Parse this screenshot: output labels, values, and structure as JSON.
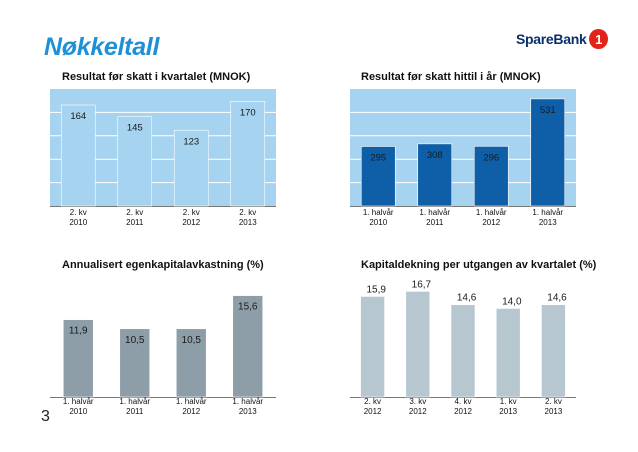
{
  "page": {
    "title": "Nøkkeltall",
    "page_number": "3",
    "logo_text": "SpareBank",
    "logo_mark": "1"
  },
  "chart_data": [
    {
      "type": "bar",
      "title": "Resultat før skatt i kvartalet (MNOK)",
      "categories": [
        [
          "2. kv",
          "2010"
        ],
        [
          "2. kv",
          "2011"
        ],
        [
          "2. kv",
          "2012"
        ],
        [
          "2. kv",
          "2013"
        ]
      ],
      "values": [
        164,
        145,
        123,
        170
      ],
      "value_labels": [
        "164",
        "145",
        "123",
        "170"
      ],
      "ylim": [
        0,
        190
      ],
      "bar_color": "#a6d3ef",
      "plot_bg": "#a6d3ef",
      "label_color": "#1a1a1a",
      "gridlines": true
    },
    {
      "type": "bar",
      "title": "Resultat før skatt hittil i år (MNOK)",
      "categories": [
        [
          "1. halvår",
          "2010"
        ],
        [
          "1. halvår",
          "2011"
        ],
        [
          "1. halvår",
          "2012"
        ],
        [
          "1. halvår",
          "2013"
        ]
      ],
      "values": [
        295,
        308,
        296,
        531
      ],
      "value_labels": [
        "295",
        "308",
        "296",
        "531"
      ],
      "ylim": [
        0,
        580
      ],
      "bar_color": "#0e5fa8",
      "plot_bg": "#a6d3ef",
      "label_color": "#1a1a1a",
      "gridlines": true
    },
    {
      "type": "bar",
      "title": "Annualisert egenkapitalavkastning (%)",
      "categories": [
        [
          "1. halvår",
          "2010"
        ],
        [
          "1. halvår",
          "2011"
        ],
        [
          "1. halvår",
          "2012"
        ],
        [
          "1. halvår",
          "2013"
        ]
      ],
      "values": [
        11.9,
        10.5,
        10.5,
        15.6
      ],
      "value_labels": [
        "11,9",
        "10,5",
        "10,5",
        "15,6"
      ],
      "ylim": [
        0,
        18
      ],
      "bar_color": "#8e9ea9",
      "plot_bg": "#ffffff",
      "label_color": "#1a1a1a",
      "gridlines": false
    },
    {
      "type": "bar",
      "title": "Kapitaldekning per utgangen av kvartalet (%)",
      "categories": [
        [
          "2. kv",
          "2012"
        ],
        [
          "3. kv",
          "2012"
        ],
        [
          "4. kv",
          "2012"
        ],
        [
          "1. kv",
          "2013"
        ],
        [
          "2. kv",
          "2013"
        ]
      ],
      "values": [
        15.9,
        16.7,
        14.6,
        14.0,
        14.6
      ],
      "value_labels": [
        "15,9",
        "16,7",
        "14,6",
        "14,0",
        "14,6"
      ],
      "ylim": [
        0,
        18.5
      ],
      "bar_color": "#b6c7cf",
      "plot_bg": "#ffffff",
      "label_color": "#1a1a1a",
      "gridlines": false
    }
  ]
}
